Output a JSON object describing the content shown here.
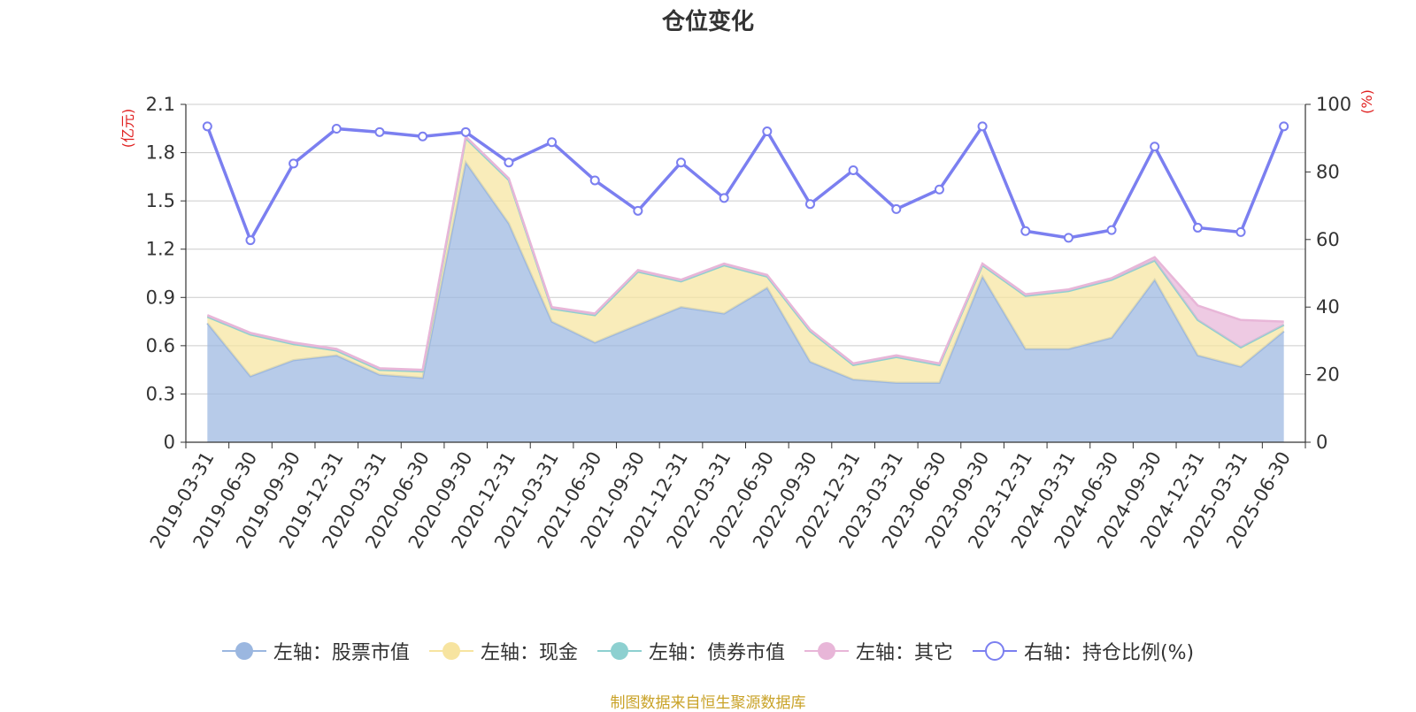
{
  "chart_data": {
    "type": "area",
    "title": "仓位变化",
    "categories": [
      "2019-03-31",
      "2019-06-30",
      "2019-09-30",
      "2019-12-31",
      "2020-03-31",
      "2020-06-30",
      "2020-09-30",
      "2020-12-31",
      "2021-03-31",
      "2021-06-30",
      "2021-09-30",
      "2021-12-31",
      "2022-03-31",
      "2022-06-30",
      "2022-09-30",
      "2022-12-31",
      "2023-03-31",
      "2023-06-30",
      "2023-09-30",
      "2023-12-31",
      "2024-03-31",
      "2024-06-30",
      "2024-09-30",
      "2024-12-31",
      "2025-03-31",
      "2025-06-30"
    ],
    "left_axis": {
      "label": "(亿元)",
      "ylim": [
        0,
        2.1
      ],
      "ticks": [
        "0",
        "0.3",
        "0.6",
        "0.9",
        "1.2",
        "1.5",
        "1.8",
        "2.1"
      ]
    },
    "right_axis": {
      "label": "(%)",
      "ylim": [
        0,
        100
      ],
      "ticks": [
        "0",
        "20",
        "40",
        "60",
        "80",
        "100"
      ]
    },
    "series": [
      {
        "name": "左轴：股票市值",
        "axis": "left",
        "stack": true,
        "color": "#9bb7e0",
        "values": [
          0.74,
          0.41,
          0.51,
          0.54,
          0.42,
          0.4,
          1.74,
          1.36,
          0.75,
          0.62,
          0.73,
          0.84,
          0.8,
          0.96,
          0.5,
          0.39,
          0.37,
          0.37,
          1.03,
          0.58,
          0.58,
          0.65,
          1.01,
          0.54,
          0.47,
          0.69
        ]
      },
      {
        "name": "左轴：现金",
        "axis": "left",
        "stack": true,
        "color": "#f7e4a0",
        "values": [
          0.04,
          0.26,
          0.1,
          0.03,
          0.03,
          0.04,
          0.15,
          0.27,
          0.08,
          0.17,
          0.33,
          0.16,
          0.3,
          0.07,
          0.19,
          0.09,
          0.16,
          0.11,
          0.07,
          0.33,
          0.36,
          0.36,
          0.12,
          0.22,
          0.12,
          0.04
        ]
      },
      {
        "name": "左轴：债券市值",
        "axis": "left",
        "stack": true,
        "color": "#8dd0d0",
        "values": [
          0,
          0,
          0,
          0,
          0,
          0,
          0,
          0,
          0,
          0,
          0,
          0,
          0,
          0,
          0,
          0,
          0,
          0,
          0,
          0,
          0,
          0,
          0,
          0,
          0,
          0
        ]
      },
      {
        "name": "左轴：其它",
        "axis": "left",
        "stack": true,
        "color": "#e8b6d8",
        "values": [
          0.01,
          0.01,
          0.01,
          0.01,
          0.01,
          0.01,
          0.01,
          0.01,
          0.01,
          0.01,
          0.01,
          0.01,
          0.01,
          0.01,
          0.01,
          0.01,
          0.01,
          0.01,
          0.01,
          0.01,
          0.01,
          0.01,
          0.02,
          0.09,
          0.17,
          0.02
        ]
      },
      {
        "name": "右轴：持仓比例(%)",
        "axis": "right",
        "color": "#7b7ff0",
        "values": [
          93.5,
          59.8,
          82.5,
          92.8,
          91.8,
          90.5,
          91.8,
          82.8,
          88.8,
          77.5,
          68.5,
          82.8,
          72.3,
          92.0,
          70.5,
          80.5,
          69.0,
          74.8,
          93.5,
          62.5,
          60.5,
          62.8,
          87.5,
          63.5,
          62.2,
          93.5
        ]
      }
    ]
  },
  "source_note": "制图数据来自恒生聚源数据库"
}
